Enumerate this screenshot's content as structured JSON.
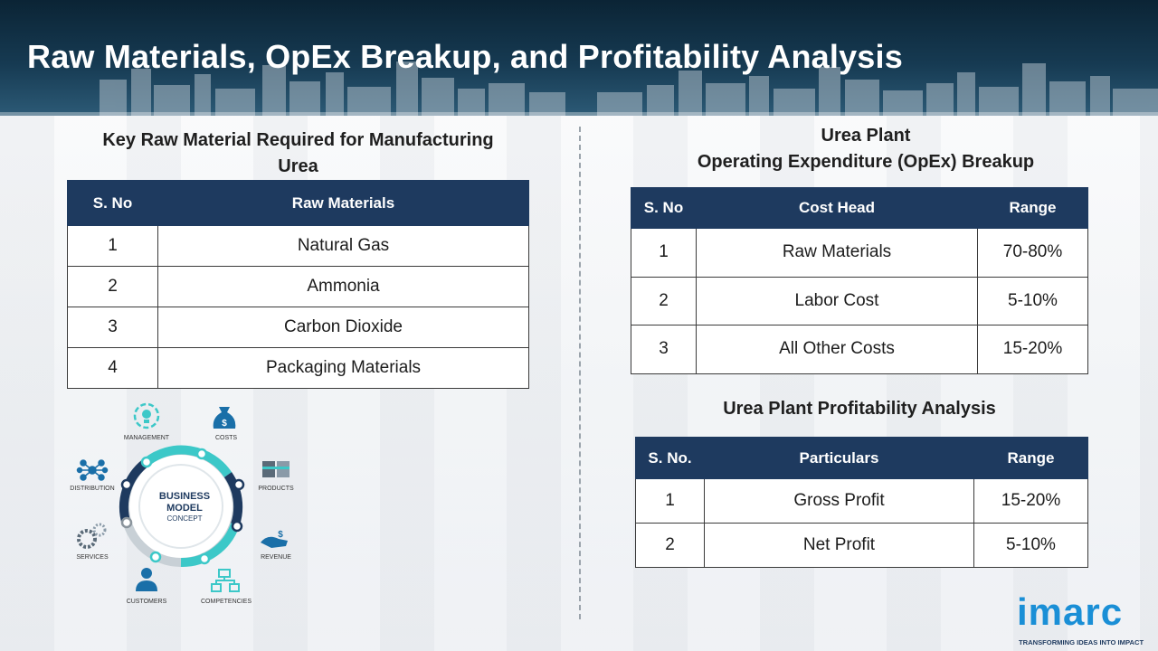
{
  "page": {
    "title": "Raw Materials, OpEx Breakup, and Profitability Analysis"
  },
  "raw_materials": {
    "title_line1": "Key Raw Material Required for Manufacturing",
    "title_line2": "Urea",
    "headers": [
      "S. No",
      "Raw Materials"
    ],
    "rows": [
      [
        "1",
        "Natural Gas"
      ],
      [
        "2",
        "Ammonia"
      ],
      [
        "3",
        "Carbon Dioxide"
      ],
      [
        "4",
        "Packaging Materials"
      ]
    ]
  },
  "opex": {
    "title_line1": "Urea Plant",
    "title_line2": "Operating Expenditure (OpEx) Breakup",
    "headers": [
      "S. No",
      "Cost Head",
      "Range"
    ],
    "rows": [
      [
        "1",
        "Raw Materials",
        "70-80%"
      ],
      [
        "2",
        "Labor Cost",
        "5-10%"
      ],
      [
        "3",
        "All Other Costs",
        "15-20%"
      ]
    ]
  },
  "profitability": {
    "title": "Urea Plant Profitability Analysis",
    "headers": [
      "S. No.",
      "Particulars",
      "Range"
    ],
    "rows": [
      [
        "1",
        "Gross Profit",
        "15-20%"
      ],
      [
        "2",
        "Net Profit",
        "5-10%"
      ]
    ]
  },
  "diagram": {
    "center_line1": "BUSINESS",
    "center_line2": "MODEL",
    "center_line3": "CONCEPT",
    "labels": {
      "management": "MANAGEMENT",
      "costs": "COSTS",
      "products": "PRODUCTS",
      "revenue": "REVENUE",
      "competencies": "COMPETENCIES",
      "customers": "CUSTOMERS",
      "services": "SERVICES",
      "distribution": "DISTRIBUTION"
    }
  },
  "logo": {
    "word": "imarc",
    "tagline": "TRANSFORMING IDEAS INTO IMPACT"
  },
  "colors": {
    "header_dark": "#0b2435",
    "table_header": "#1e3a5f",
    "accent_teal": "#3cc8c8",
    "logo_blue": "#1a8fd6"
  }
}
